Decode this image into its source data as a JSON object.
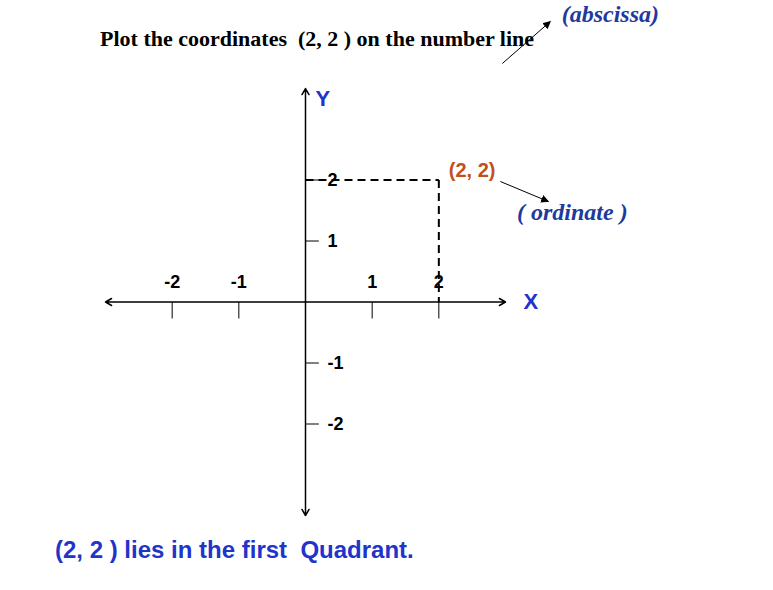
{
  "chart_data": {
    "type": "scatter",
    "title": "Plot the coordinates  (2, 2 ) on the number line",
    "x": [
      2
    ],
    "values": [
      2
    ],
    "value_labels": [
      "(2, 2)"
    ],
    "data_labels": true,
    "color": "#c0501f",
    "line_style": "dashed",
    "x_label": "X",
    "y_label": "Y",
    "xlim": [
      -3,
      3
    ],
    "ylim": [
      -3.5,
      3.5
    ],
    "xticks": [
      -2,
      -1,
      1,
      2
    ],
    "yticks": [
      -2,
      -1,
      1,
      2
    ],
    "grid": false,
    "annotations": [
      "(abscissa)",
      "( ordinate )"
    ],
    "caption": "(2, 2 ) lies in the first  Quadrant."
  }
}
